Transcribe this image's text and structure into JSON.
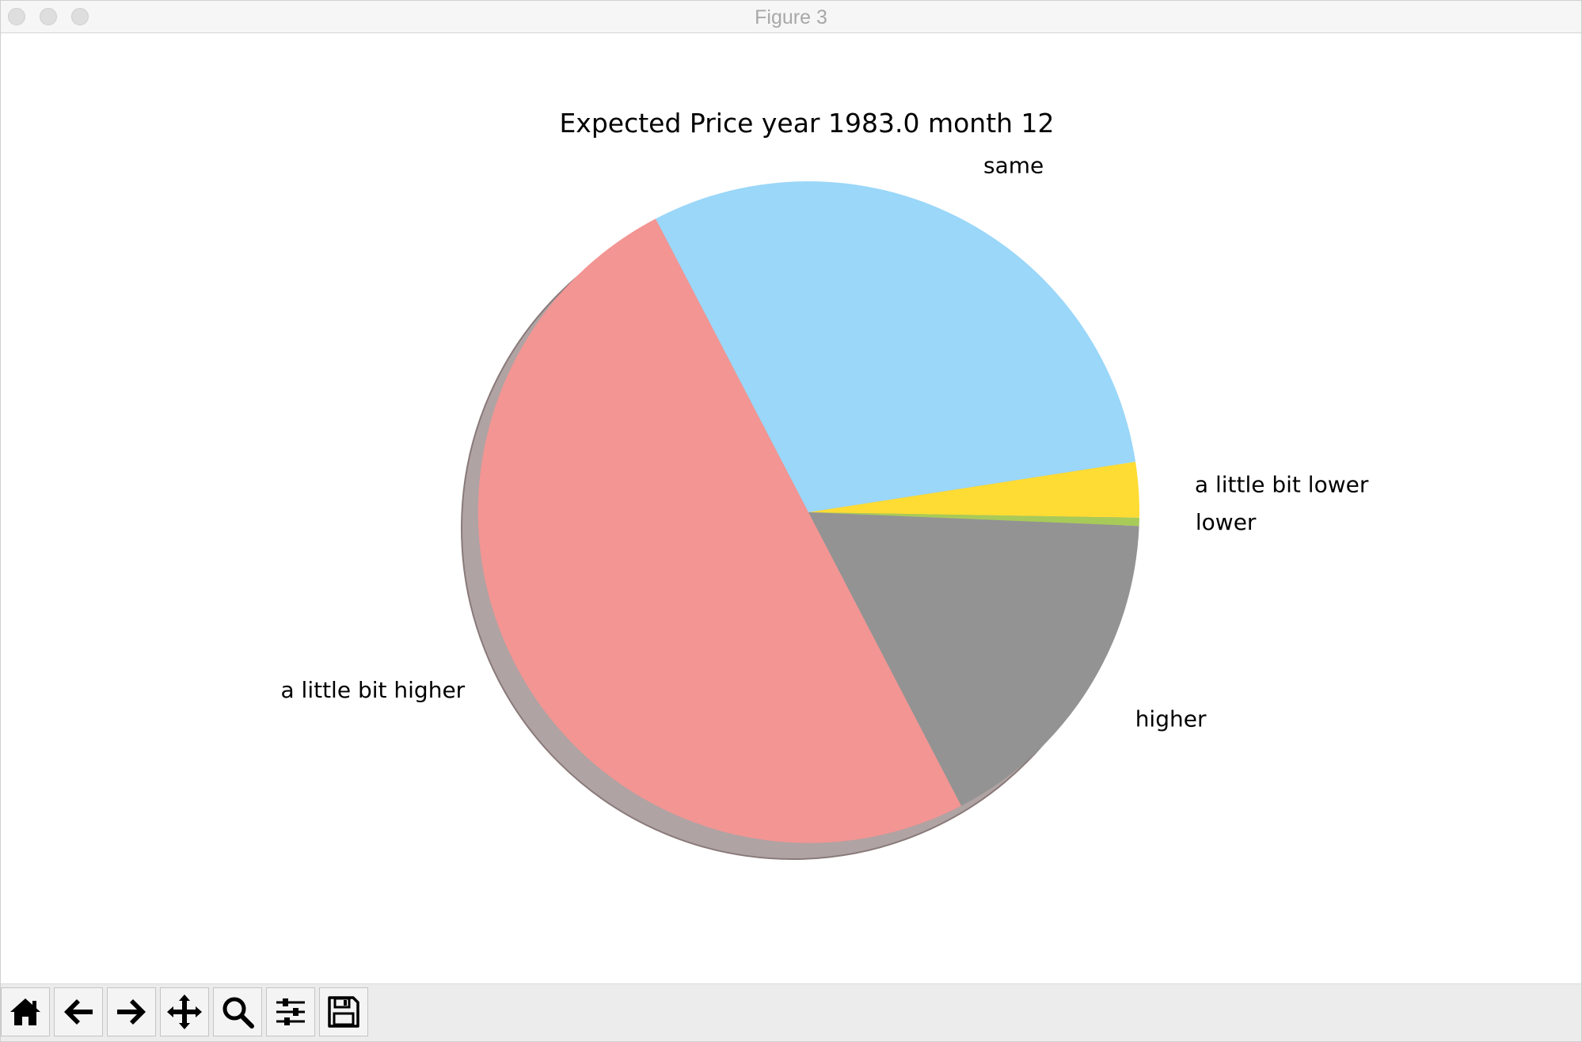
{
  "window": {
    "title": "Figure 3"
  },
  "toolbar": {
    "buttons": [
      {
        "name": "home-button",
        "icon": "home-icon"
      },
      {
        "name": "back-button",
        "icon": "arrow-left-icon"
      },
      {
        "name": "forward-button",
        "icon": "arrow-right-icon"
      },
      {
        "name": "pan-button",
        "icon": "move-icon"
      },
      {
        "name": "zoom-button",
        "icon": "search-icon"
      },
      {
        "name": "configure-subplots-button",
        "icon": "sliders-icon"
      },
      {
        "name": "save-button",
        "icon": "floppy-disk-icon"
      }
    ]
  },
  "chart_data": {
    "type": "pie",
    "title": "Expected Price year 1983.0 month 12",
    "labels": [
      "same",
      "a little bit lower",
      "lower",
      "higher",
      "a little bit higher"
    ],
    "values": [
      0.302,
      0.027,
      0.004,
      0.167,
      0.5
    ],
    "colors": [
      "#9AD7F9",
      "#FFDC33",
      "#A8CA58",
      "#939393",
      "#F29593"
    ],
    "start_angle_deg": 117.5,
    "counterclockwise": false,
    "shadow": true
  }
}
